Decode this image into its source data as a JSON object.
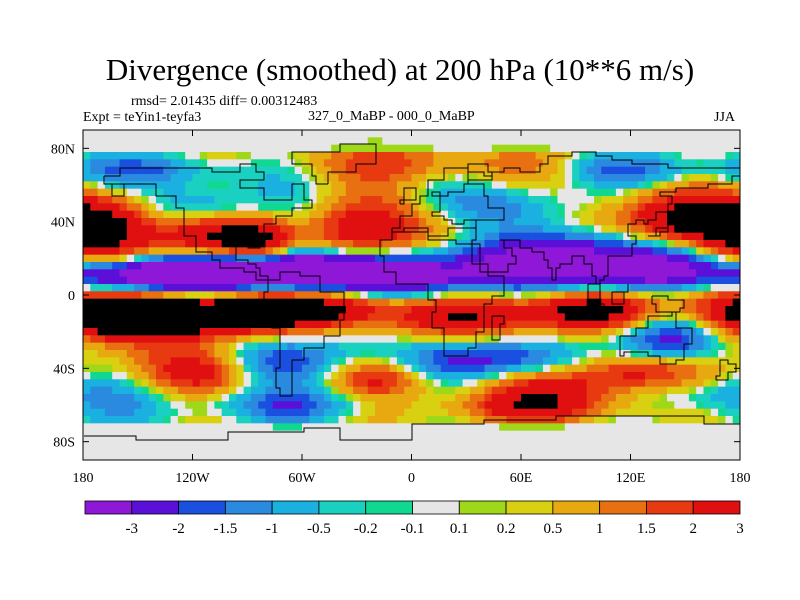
{
  "chart_data": {
    "type": "heatmap",
    "title": "Divergence (smoothed) at 200 hPa (10**6 m/s)",
    "stats_line": "rmsd= 2.01435 diff= 0.00312483",
    "left_label": "Expt = teYin1-teyfa3",
    "center_label": "327_0_MaBP - 000_0_MaBP",
    "right_label": "JJA",
    "x_ticks": [
      "180",
      "120W",
      "60W",
      "0",
      "60E",
      "120E",
      "180"
    ],
    "x_tick_values": [
      -180,
      -120,
      -60,
      0,
      60,
      120,
      180
    ],
    "y_ticks": [
      "80N",
      "40N",
      "0",
      "40S",
      "80S"
    ],
    "y_tick_values": [
      80,
      40,
      0,
      -40,
      -80
    ],
    "xlim": [
      -180,
      180
    ],
    "ylim": [
      -90,
      90
    ],
    "colorbar": {
      "boundaries": [
        "-3",
        "-2",
        "-1.5",
        "-1",
        "-0.5",
        "-0.2",
        "-0.1",
        "0.1",
        "0.2",
        "0.5",
        "1",
        "1.5",
        "2",
        "3"
      ],
      "colors": [
        "#8f18d8",
        "#5a10d8",
        "#1a4fe0",
        "#2a8ae0",
        "#1ab0e0",
        "#1ad0c0",
        "#10d890",
        "#e6e6e6",
        "#9ed818",
        "#d8d010",
        "#e8a810",
        "#e87010",
        "#e83a10",
        "#e01010"
      ]
    }
  }
}
